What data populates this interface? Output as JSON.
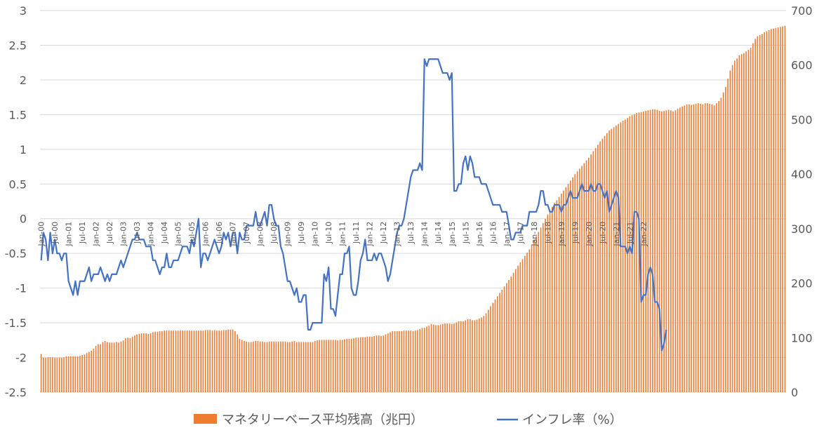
{
  "chart_data": {
    "type": "bar+line",
    "title": "",
    "x_range": [
      "Jan-00",
      "Apr-22"
    ],
    "x_tick_labels": [
      "Jan-00",
      "Jul-00",
      "Jan-01",
      "Jul-01",
      "Jan-02",
      "Jul-02",
      "Jan-03",
      "Jul-03",
      "Jan-04",
      "Jul-04",
      "Jan-05",
      "Jul-05",
      "Jan-06",
      "Jul-06",
      "Jan-07",
      "Jul-07",
      "Jan-08",
      "Jul-08",
      "Jan-09",
      "Jul-09",
      "Jan-10",
      "Jul-10",
      "Jan-11",
      "Jul-11",
      "Jan-12",
      "Jul-12",
      "Jan-13",
      "Jul-13",
      "Jan-14",
      "Jul-14",
      "Jan-15",
      "Jul-15",
      "Jan-16",
      "Jul-16",
      "Jan-17",
      "Jul-17",
      "Jan-18",
      "Jul-18",
      "Jan-19",
      "Jul-19",
      "Jan-20",
      "Jul-20",
      "Jan-21",
      "Jul-21",
      "Jan-22"
    ],
    "y_left": {
      "min": -2.5,
      "max": 3,
      "ticks": [
        "3",
        "2.5",
        "2",
        "1.5",
        "1",
        "0.5",
        "0",
        "-0.5",
        "-1",
        "-1.5",
        "-2",
        "-2.5"
      ]
    },
    "y_right": {
      "min": 0,
      "max": 700,
      "ticks": [
        "700",
        "600",
        "500",
        "400",
        "300",
        "200",
        "100",
        "0"
      ]
    },
    "grid": true,
    "legend_position": "bottom",
    "series": [
      {
        "name": "マネタリーベース平均残高（兆円）",
        "type": "bar",
        "axis": "right",
        "color": "#ED7D31",
        "monthly_values_from_Jan-00": [
          70,
          63,
          63,
          64,
          64,
          64,
          63,
          63,
          63,
          63,
          64,
          66,
          66,
          66,
          66,
          66,
          66,
          67,
          68,
          69,
          72,
          74,
          76,
          80,
          85,
          88,
          88,
          92,
          94,
          92,
          91,
          91,
          91,
          92,
          91,
          93,
          95,
          99,
          100,
          99,
          102,
          104,
          106,
          107,
          108,
          108,
          108,
          107,
          108,
          110,
          111,
          111,
          112,
          112,
          113,
          113,
          113,
          113,
          113,
          113,
          113,
          113,
          113,
          113,
          113,
          113,
          113,
          113,
          113,
          113,
          113,
          113,
          114,
          114,
          114,
          113,
          114,
          113,
          113,
          113,
          114,
          114,
          115,
          115,
          115,
          112,
          106,
          98,
          96,
          94,
          93,
          92,
          92,
          93,
          94,
          94,
          93,
          93,
          92,
          92,
          93,
          93,
          93,
          93,
          93,
          93,
          93,
          93,
          92,
          92,
          93,
          94,
          92,
          92,
          92,
          92,
          92,
          92,
          92,
          92,
          94,
          95,
          96,
          96,
          96,
          96,
          96,
          96,
          96,
          96,
          95,
          96,
          96,
          97,
          98,
          98,
          98,
          99,
          100,
          100,
          101,
          101,
          101,
          102,
          102,
          102,
          103,
          104,
          104,
          103,
          104,
          106,
          108,
          110,
          112,
          112,
          112,
          112,
          112,
          113,
          113,
          113,
          113,
          112,
          113,
          114,
          116,
          118,
          118,
          120,
          122,
          125,
          124,
          123,
          123,
          124,
          125,
          126,
          126,
          126,
          125,
          126,
          128,
          130,
          130,
          130,
          132,
          134,
          134,
          132,
          132,
          133,
          135,
          137,
          140,
          145,
          151,
          158,
          164,
          170,
          176,
          182,
          188,
          194,
          200,
          206,
          212,
          219,
          226,
          232,
          238,
          244,
          250,
          256,
          262,
          270,
          278,
          286,
          294,
          302,
          310,
          318,
          326,
          333,
          340,
          347,
          352,
          358,
          364,
          370,
          376,
          382,
          388,
          394,
          400,
          405,
          410,
          415,
          420,
          425,
          430,
          436,
          442,
          448,
          454,
          460,
          465,
          470,
          475,
          480,
          483,
          486,
          489,
          492,
          495,
          498,
          500,
          503,
          506,
          508,
          510,
          512,
          513,
          514,
          515,
          516,
          517,
          518,
          519,
          519,
          518,
          516,
          515,
          516,
          517,
          518,
          517,
          515,
          517,
          520,
          522,
          524,
          526,
          528,
          528,
          527,
          528,
          529,
          530,
          529,
          528,
          530,
          530,
          529,
          528,
          526,
          530,
          534,
          540,
          550,
          560,
          575,
          590,
          600,
          608,
          612,
          618,
          620,
          622,
          625,
          628,
          632,
          640,
          648,
          653,
          655,
          657,
          660,
          662,
          664,
          666,
          667,
          668,
          669,
          670,
          671,
          672
        ]
      },
      {
        "name": "インフレ率（%）",
        "type": "line",
        "axis": "left",
        "color": "#4472C4",
        "monthly_values_from_Jan-00": [
          -0.6,
          -0.2,
          -0.3,
          -0.6,
          -0.2,
          -0.5,
          -0.3,
          -0.5,
          -0.5,
          -0.6,
          -0.5,
          -0.5,
          -0.9,
          -1.0,
          -1.1,
          -0.9,
          -1.1,
          -0.9,
          -0.9,
          -0.9,
          -0.8,
          -0.7,
          -0.9,
          -0.8,
          -0.8,
          -0.8,
          -0.7,
          -0.8,
          -0.9,
          -0.8,
          -0.9,
          -0.8,
          -0.8,
          -0.8,
          -0.7,
          -0.6,
          -0.7,
          -0.6,
          -0.5,
          -0.4,
          -0.3,
          -0.3,
          -0.2,
          -0.3,
          -0.3,
          -0.3,
          -0.4,
          -0.4,
          -0.4,
          -0.6,
          -0.6,
          -0.7,
          -0.8,
          -0.7,
          -0.7,
          -0.5,
          -0.7,
          -0.7,
          -0.6,
          -0.6,
          -0.6,
          -0.5,
          -0.4,
          -0.4,
          -0.4,
          -0.5,
          -0.3,
          -0.4,
          -0.2,
          0,
          -0.7,
          -0.5,
          -0.5,
          -0.6,
          -0.5,
          -0.4,
          -0.3,
          -0.4,
          -0.5,
          -0.4,
          -0.2,
          -0.3,
          -0.2,
          -0.4,
          -0.2,
          -0.2,
          -0.5,
          -0.2,
          -0.3,
          -0.3,
          -0.1,
          -0.1,
          -0.1,
          -0.1,
          0.1,
          -0.1,
          -0.1,
          0,
          0.1,
          -0.1,
          0.2,
          0.2,
          0,
          -0.1,
          -0.1,
          -0.4,
          -0.5,
          -0.7,
          -0.9,
          -0.9,
          -1.0,
          -1.1,
          -1.0,
          -1.2,
          -1.2,
          -1.1,
          -1.1,
          -1.6,
          -1.6,
          -1.5,
          -1.5,
          -1.5,
          -1.5,
          -1.5,
          -0.8,
          -0.9,
          -0.7,
          -1.3,
          -1.3,
          -1.4,
          -1.1,
          -0.8,
          -0.8,
          -0.5,
          -0.5,
          -0.4,
          -1.0,
          -1.1,
          -1.1,
          -0.9,
          -0.6,
          -0.5,
          -0.3,
          -0.6,
          -0.6,
          -0.6,
          -0.5,
          -0.6,
          -0.5,
          -0.5,
          -0.6,
          -0.7,
          -0.9,
          -0.8,
          -0.6,
          -0.4,
          -0.2,
          -0.1,
          -0.1,
          0,
          0.2,
          0.4,
          0.6,
          0.7,
          0.7,
          0.7,
          0.8,
          0.7,
          2.3,
          2.2,
          2.3,
          2.3,
          2.3,
          2.3,
          2.3,
          2.2,
          2.1,
          2.1,
          2.1,
          2.0,
          2.1,
          0.4,
          0.4,
          0.5,
          0.5,
          0.8,
          0.9,
          0.7,
          0.9,
          0.8,
          0.6,
          0.6,
          0.6,
          0.5,
          0.5,
          0.5,
          0.4,
          0.3,
          0.2,
          0.2,
          0.2,
          0.2,
          0.1,
          0.1,
          0.1,
          -0.1,
          -0.3,
          -0.3,
          -0.2,
          -0.2,
          -0.2,
          -0.1,
          -0.1,
          -0.1,
          0.1,
          0.1,
          0.1,
          0.1,
          0.2,
          0.4,
          0.4,
          0.2,
          0.2,
          0.1,
          0.1,
          0.2,
          0.2,
          0.2,
          0.1,
          0.2,
          0.2,
          0.3,
          0.4,
          0.3,
          0.3,
          0.3,
          0.4,
          0.5,
          0.4,
          0.4,
          0.4,
          0.5,
          0.4,
          0.4,
          0.5,
          0.5,
          0.4,
          0.3,
          0.4,
          0.1,
          0.2,
          0.3,
          0.4,
          0.3,
          -0.4,
          -0.4,
          -0.4,
          -0.5,
          -0.4,
          -0.5,
          0.1,
          0.1,
          0,
          -1.2,
          -1.1,
          -1.1,
          -0.8,
          -0.7,
          -0.8,
          -1.2,
          -1.2,
          -1.3,
          -1.9,
          -1.8,
          -1.6
        ]
      }
    ]
  }
}
